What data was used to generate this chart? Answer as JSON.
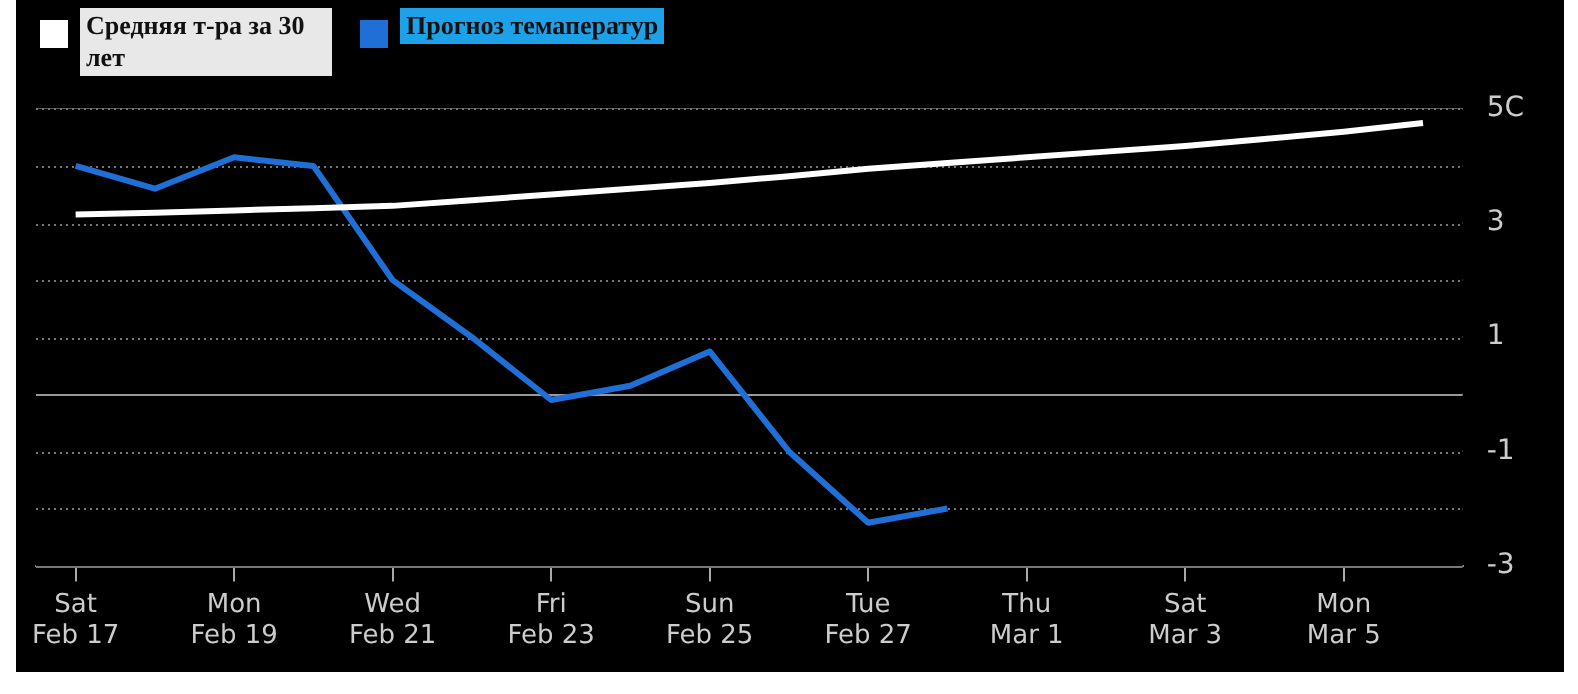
{
  "chart_data": {
    "type": "line",
    "categories": [
      "Sat\nFeb 17",
      null,
      "Mon\nFeb 19",
      null,
      "Wed\nFeb 21",
      null,
      "Fri\nFeb 23",
      null,
      "Sun\nFeb 25",
      null,
      "Tue\nFeb 27",
      null,
      "Thu\nMar 1",
      null,
      "Sat\nMar 3",
      null,
      "Mon\nMar 5",
      null
    ],
    "series": [
      {
        "name": "Средняя т-ра за 30 лет",
        "color": "#ffffff",
        "values": [
          3.15,
          3.18,
          3.22,
          3.26,
          3.3,
          3.4,
          3.5,
          3.6,
          3.7,
          3.82,
          3.95,
          4.05,
          4.15,
          4.25,
          4.35,
          4.47,
          4.6,
          4.75
        ]
      },
      {
        "name": "Прогноз темаператур",
        "color": "#1f6fd6",
        "values": [
          4.0,
          3.6,
          4.15,
          4.0,
          2.0,
          1.0,
          -0.1,
          0.15,
          0.75,
          -1.0,
          -2.25,
          -2.0,
          null,
          null,
          null,
          null,
          null,
          null
        ]
      }
    ],
    "ylim": [
      -3,
      5
    ],
    "yticks": [
      {
        "value": -3,
        "label": "-3"
      },
      {
        "value": -2,
        "label": null
      },
      {
        "value": -1,
        "label": "-1"
      },
      {
        "value": 0,
        "label": null
      },
      {
        "value": 1,
        "label": "1"
      },
      {
        "value": 2,
        "label": null
      },
      {
        "value": 3,
        "label": "3"
      },
      {
        "value": 4,
        "label": null
      },
      {
        "value": 5,
        "label": "5C"
      }
    ],
    "grid": "y",
    "legend": "top left",
    "marker": "none",
    "line_style": "solid"
  }
}
